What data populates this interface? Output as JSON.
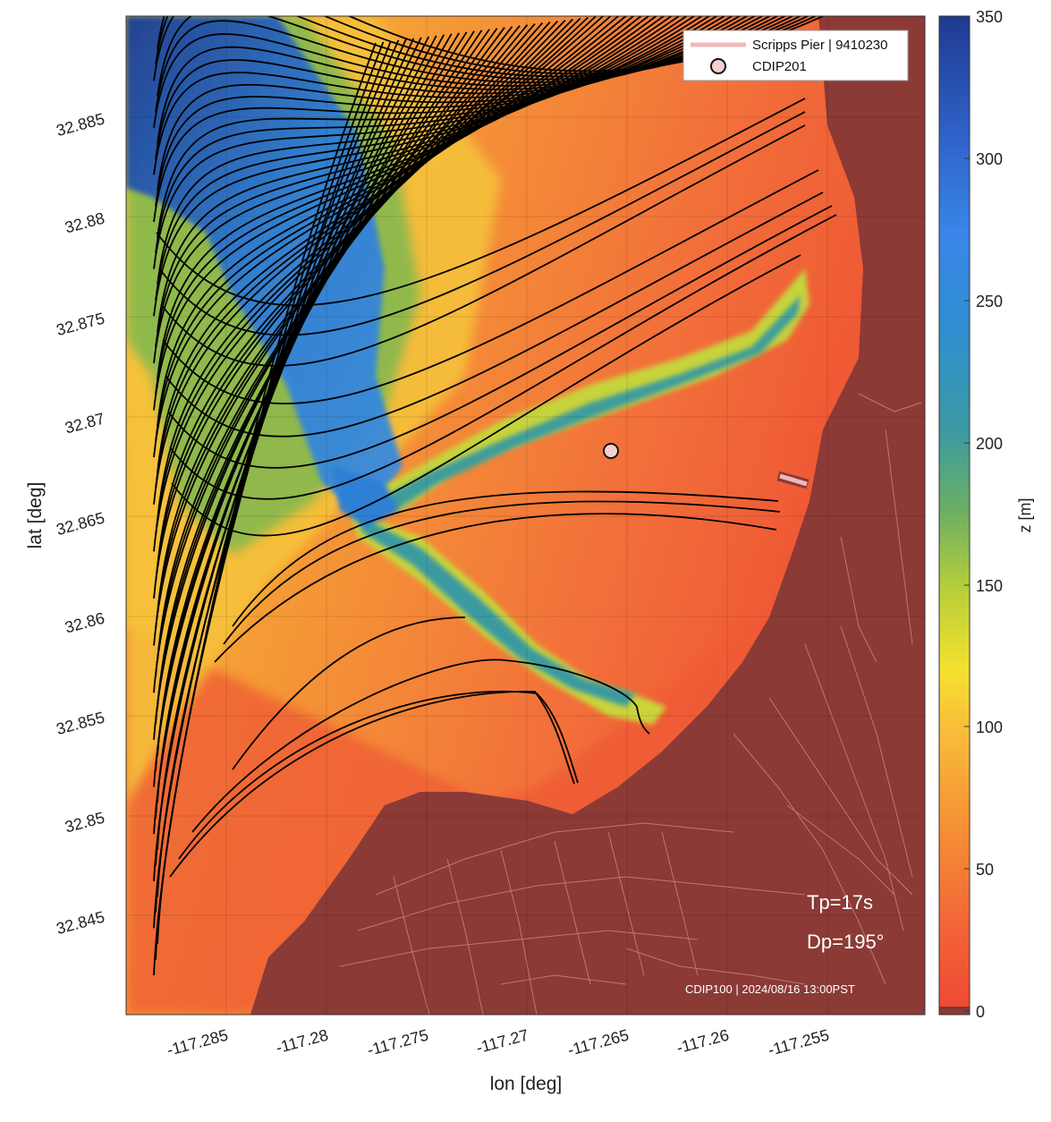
{
  "map": {
    "xlabel": "lon [deg]",
    "ylabel": "lat [deg]",
    "lon_range": [
      -117.2885,
      -117.2485
    ],
    "lat_range": [
      32.84,
      32.8898
    ],
    "lon_ticks": [
      -117.285,
      -117.28,
      -117.275,
      -117.27,
      -117.265,
      -117.26,
      -117.255
    ],
    "lon_tick_labels": [
      "-117.285",
      "-117.28",
      "-117.275",
      "-117.27",
      "-117.265",
      "-117.26",
      "-117.255"
    ],
    "lat_ticks": [
      32.885,
      32.88,
      32.875,
      32.87,
      32.865,
      32.86,
      32.855,
      32.85,
      32.845
    ],
    "lat_tick_labels": [
      "32.885",
      "32.88",
      "32.875",
      "32.87",
      "32.865",
      "32.86",
      "32.855",
      "32.85",
      "32.845"
    ]
  },
  "colorbar": {
    "label": "z [m]",
    "min": 0,
    "max": 350,
    "ticks": [
      0,
      50,
      100,
      150,
      200,
      250,
      300,
      350
    ],
    "tick_labels": [
      "0",
      "50",
      "100",
      "150",
      "200",
      "250",
      "300",
      "350"
    ],
    "colors": [
      "#ee4a33",
      "#f38a35",
      "#f7c53a",
      "#f0ea2e",
      "#8cbd4c",
      "#3a9da3",
      "#2f86d8",
      "#3a7ad8",
      "#1f3e98"
    ],
    "land_color": "#8b3a36"
  },
  "legend": {
    "pier_label": "Scripps Pier | 9410230",
    "buoy_label": "CDIP201",
    "pier_color": "#f2b8b8",
    "buoy_color": "#f6cfcf"
  },
  "annotations": {
    "tp": "Tp=17s",
    "dp": "Dp=195°",
    "source": "CDIP100 | 2024/08/16 13:00PST"
  },
  "chart_data": {
    "type": "map",
    "title": "",
    "xlabel": "lon [deg]",
    "ylabel": "lat [deg]",
    "xlim": [
      -117.2885,
      -117.2485
    ],
    "ylim": [
      32.84,
      32.8898
    ],
    "colorbar": {
      "label": "z [m]",
      "range": [
        0,
        350
      ]
    },
    "features": [
      {
        "name": "Scripps Pier | 9410230",
        "type": "pier",
        "lon": [
          -117.2556,
          -117.254
        ],
        "lat": [
          32.8664,
          32.8658
        ]
      },
      {
        "name": "CDIP201",
        "type": "buoy",
        "lon": -117.2655,
        "lat": 32.8682
      }
    ],
    "wave_rays": {
      "count_approx": 80,
      "start_lon": -117.2873,
      "start_lat_range": [
        32.842,
        32.889
      ],
      "peak_period_s": 17,
      "peak_direction_deg": 195
    }
  }
}
